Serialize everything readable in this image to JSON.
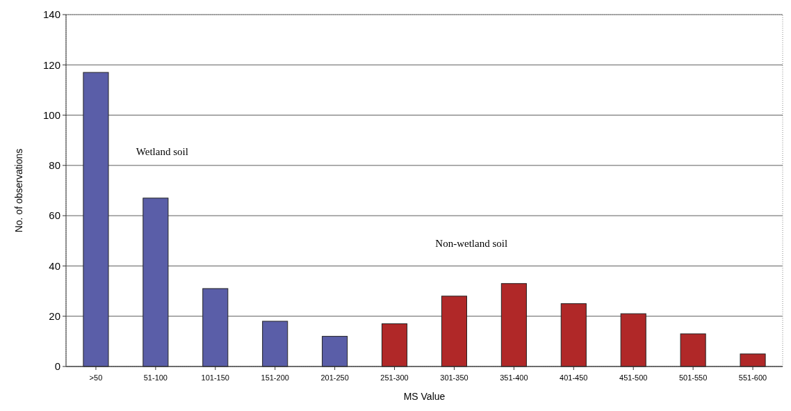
{
  "chart_data": {
    "type": "bar",
    "xlabel": "MS Value",
    "ylabel": "No. of observations",
    "categories": [
      ">50",
      "51-100",
      "101-150",
      "151-200",
      "201-250",
      "251-300",
      "301-350",
      "351-400",
      "401-450",
      "451-500",
      "501-550",
      "551-600"
    ],
    "values": [
      117,
      67,
      31,
      18,
      12,
      17,
      28,
      33,
      25,
      21,
      13,
      5
    ],
    "colors": [
      "#5a5ea8",
      "#5a5ea8",
      "#5a5ea8",
      "#5a5ea8",
      "#5a5ea8",
      "#b02828",
      "#b02828",
      "#b02828",
      "#b02828",
      "#b02828",
      "#b02828",
      "#b02828"
    ],
    "ylim": [
      0,
      140
    ],
    "yticks": [
      0,
      20,
      40,
      60,
      80,
      100,
      120,
      140
    ],
    "grid": "y",
    "annotations": [
      "Wetland soil",
      "Non-wetland soil"
    ]
  }
}
